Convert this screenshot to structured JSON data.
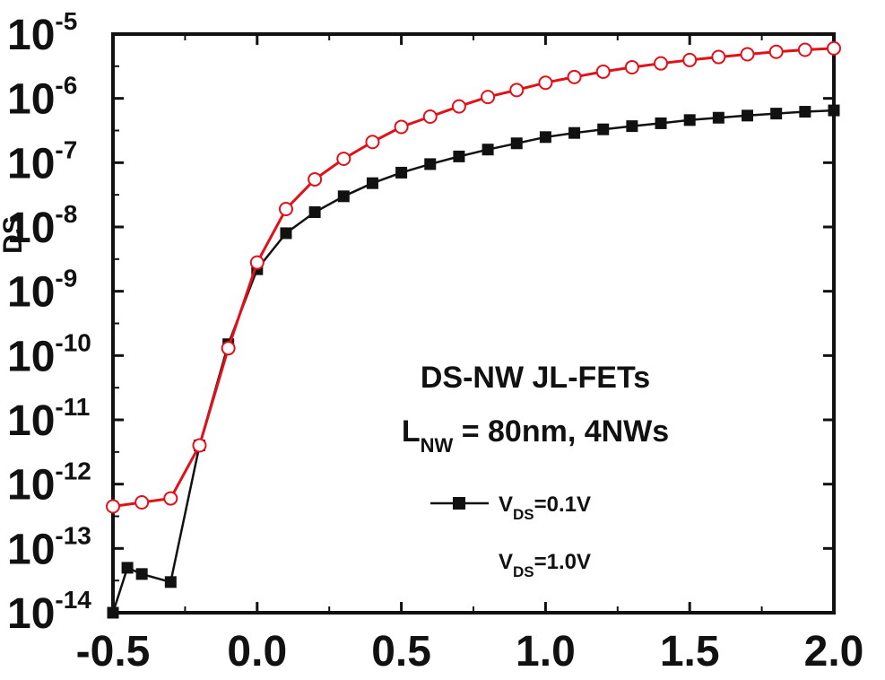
{
  "chart_data": {
    "type": "line",
    "ylabel": "I",
    "ylabel_sub": "DS",
    "ylabel_visible": "DS",
    "xlim": [
      -0.5,
      2.0
    ],
    "ylim": [
      1e-14,
      1e-05
    ],
    "yscale": "log",
    "grid": false,
    "x_ticks": [
      -0.5,
      0.0,
      0.5,
      1.0,
      1.5,
      2.0
    ],
    "x_tick_labels": [
      "-0.5",
      "0.0",
      "0.5",
      "1.0",
      "1.5",
      "2.0"
    ],
    "y_tick_exponents": [
      "-14",
      "-13",
      "-12",
      "-11",
      "-10",
      "-9",
      "-8",
      "-7",
      "-6",
      "-5"
    ],
    "y_tick_base": "10",
    "annotation_title": "DS-NW JL-FETs",
    "annotation_line2": {
      "main": "L",
      "sub": "NW",
      "rest": " = 80nm, 4NWs"
    },
    "legend_position": "bottom-right",
    "series": [
      {
        "name": "V_DS=0.1V",
        "legend": {
          "main": "V",
          "sub": "DS",
          "rest": "=0.1V"
        },
        "color": "#111111",
        "marker": "filled-square",
        "x": [
          -0.5,
          -0.45,
          -0.4,
          -0.3,
          -0.2,
          -0.1,
          0.0,
          0.1,
          0.2,
          0.3,
          0.4,
          0.5,
          0.6,
          0.7,
          0.8,
          0.9,
          1.0,
          1.1,
          1.2,
          1.3,
          1.4,
          1.5,
          1.6,
          1.7,
          1.8,
          1.9,
          2.0
        ],
        "y": [
          1e-14,
          5e-14,
          4e-14,
          3e-14,
          4e-12,
          1.5e-10,
          2.2e-09,
          8e-09,
          1.7e-08,
          3e-08,
          4.8e-08,
          7e-08,
          9.5e-08,
          1.25e-07,
          1.6e-07,
          2e-07,
          2.5e-07,
          2.9e-07,
          3.3e-07,
          3.7e-07,
          4.1e-07,
          4.6e-07,
          5e-07,
          5.4e-07,
          5.8e-07,
          6.2e-07,
          6.5e-07
        ]
      },
      {
        "name": "V_DS=1.0V",
        "legend": {
          "main": "V",
          "sub": "DS",
          "rest": "=1.0V"
        },
        "color": "#e3101a",
        "marker": "open-circle",
        "x": [
          -0.5,
          -0.4,
          -0.3,
          -0.2,
          -0.1,
          0.0,
          0.1,
          0.2,
          0.3,
          0.4,
          0.5,
          0.6,
          0.7,
          0.8,
          0.9,
          1.0,
          1.1,
          1.2,
          1.3,
          1.4,
          1.5,
          1.6,
          1.7,
          1.8,
          1.9,
          2.0
        ],
        "y": [
          4.5e-13,
          5.2e-13,
          6e-13,
          4e-12,
          1.3e-10,
          2.8e-09,
          1.9e-08,
          5.5e-08,
          1.15e-07,
          2.1e-07,
          3.6e-07,
          5.2e-07,
          7.5e-07,
          1.05e-06,
          1.35e-06,
          1.75e-06,
          2.15e-06,
          2.6e-06,
          3.05e-06,
          3.5e-06,
          3.95e-06,
          4.4e-06,
          4.85e-06,
          5.3e-06,
          5.7e-06,
          6e-06
        ]
      }
    ]
  }
}
